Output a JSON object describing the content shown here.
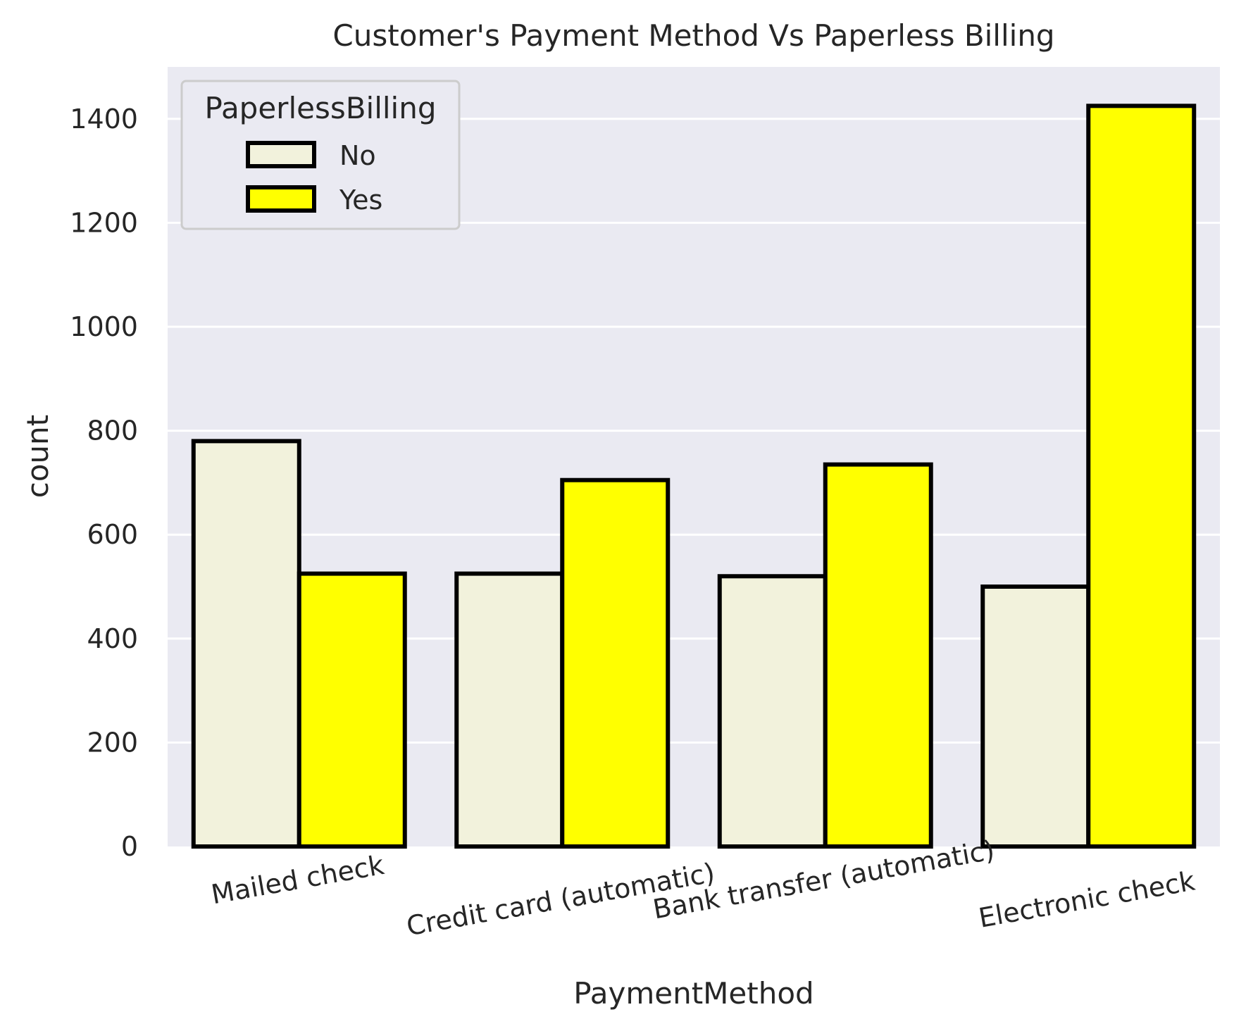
{
  "chart_data": {
    "type": "bar",
    "title": "Customer's Payment Method Vs Paperless Billing",
    "xlabel": "PaymentMethod",
    "ylabel": "count",
    "categories": [
      "Mailed check",
      "Credit card (automatic)",
      "Bank transfer (automatic)",
      "Electronic check"
    ],
    "series": [
      {
        "name": "No",
        "values": [
          780,
          525,
          520,
          500
        ],
        "color": "#f2f2dc"
      },
      {
        "name": "Yes",
        "values": [
          525,
          705,
          735,
          1425
        ],
        "color": "#ffff00"
      }
    ],
    "ylim": [
      0,
      1500
    ],
    "yticks": [
      0,
      200,
      400,
      600,
      800,
      1000,
      1200,
      1400
    ],
    "grid": true,
    "legend": {
      "title": "PaperlessBilling",
      "placement": "top-left"
    },
    "colors": {
      "plot_background": "#eaeaf2",
      "gridline": "#ffffff",
      "bar_edge": "#000000"
    }
  }
}
